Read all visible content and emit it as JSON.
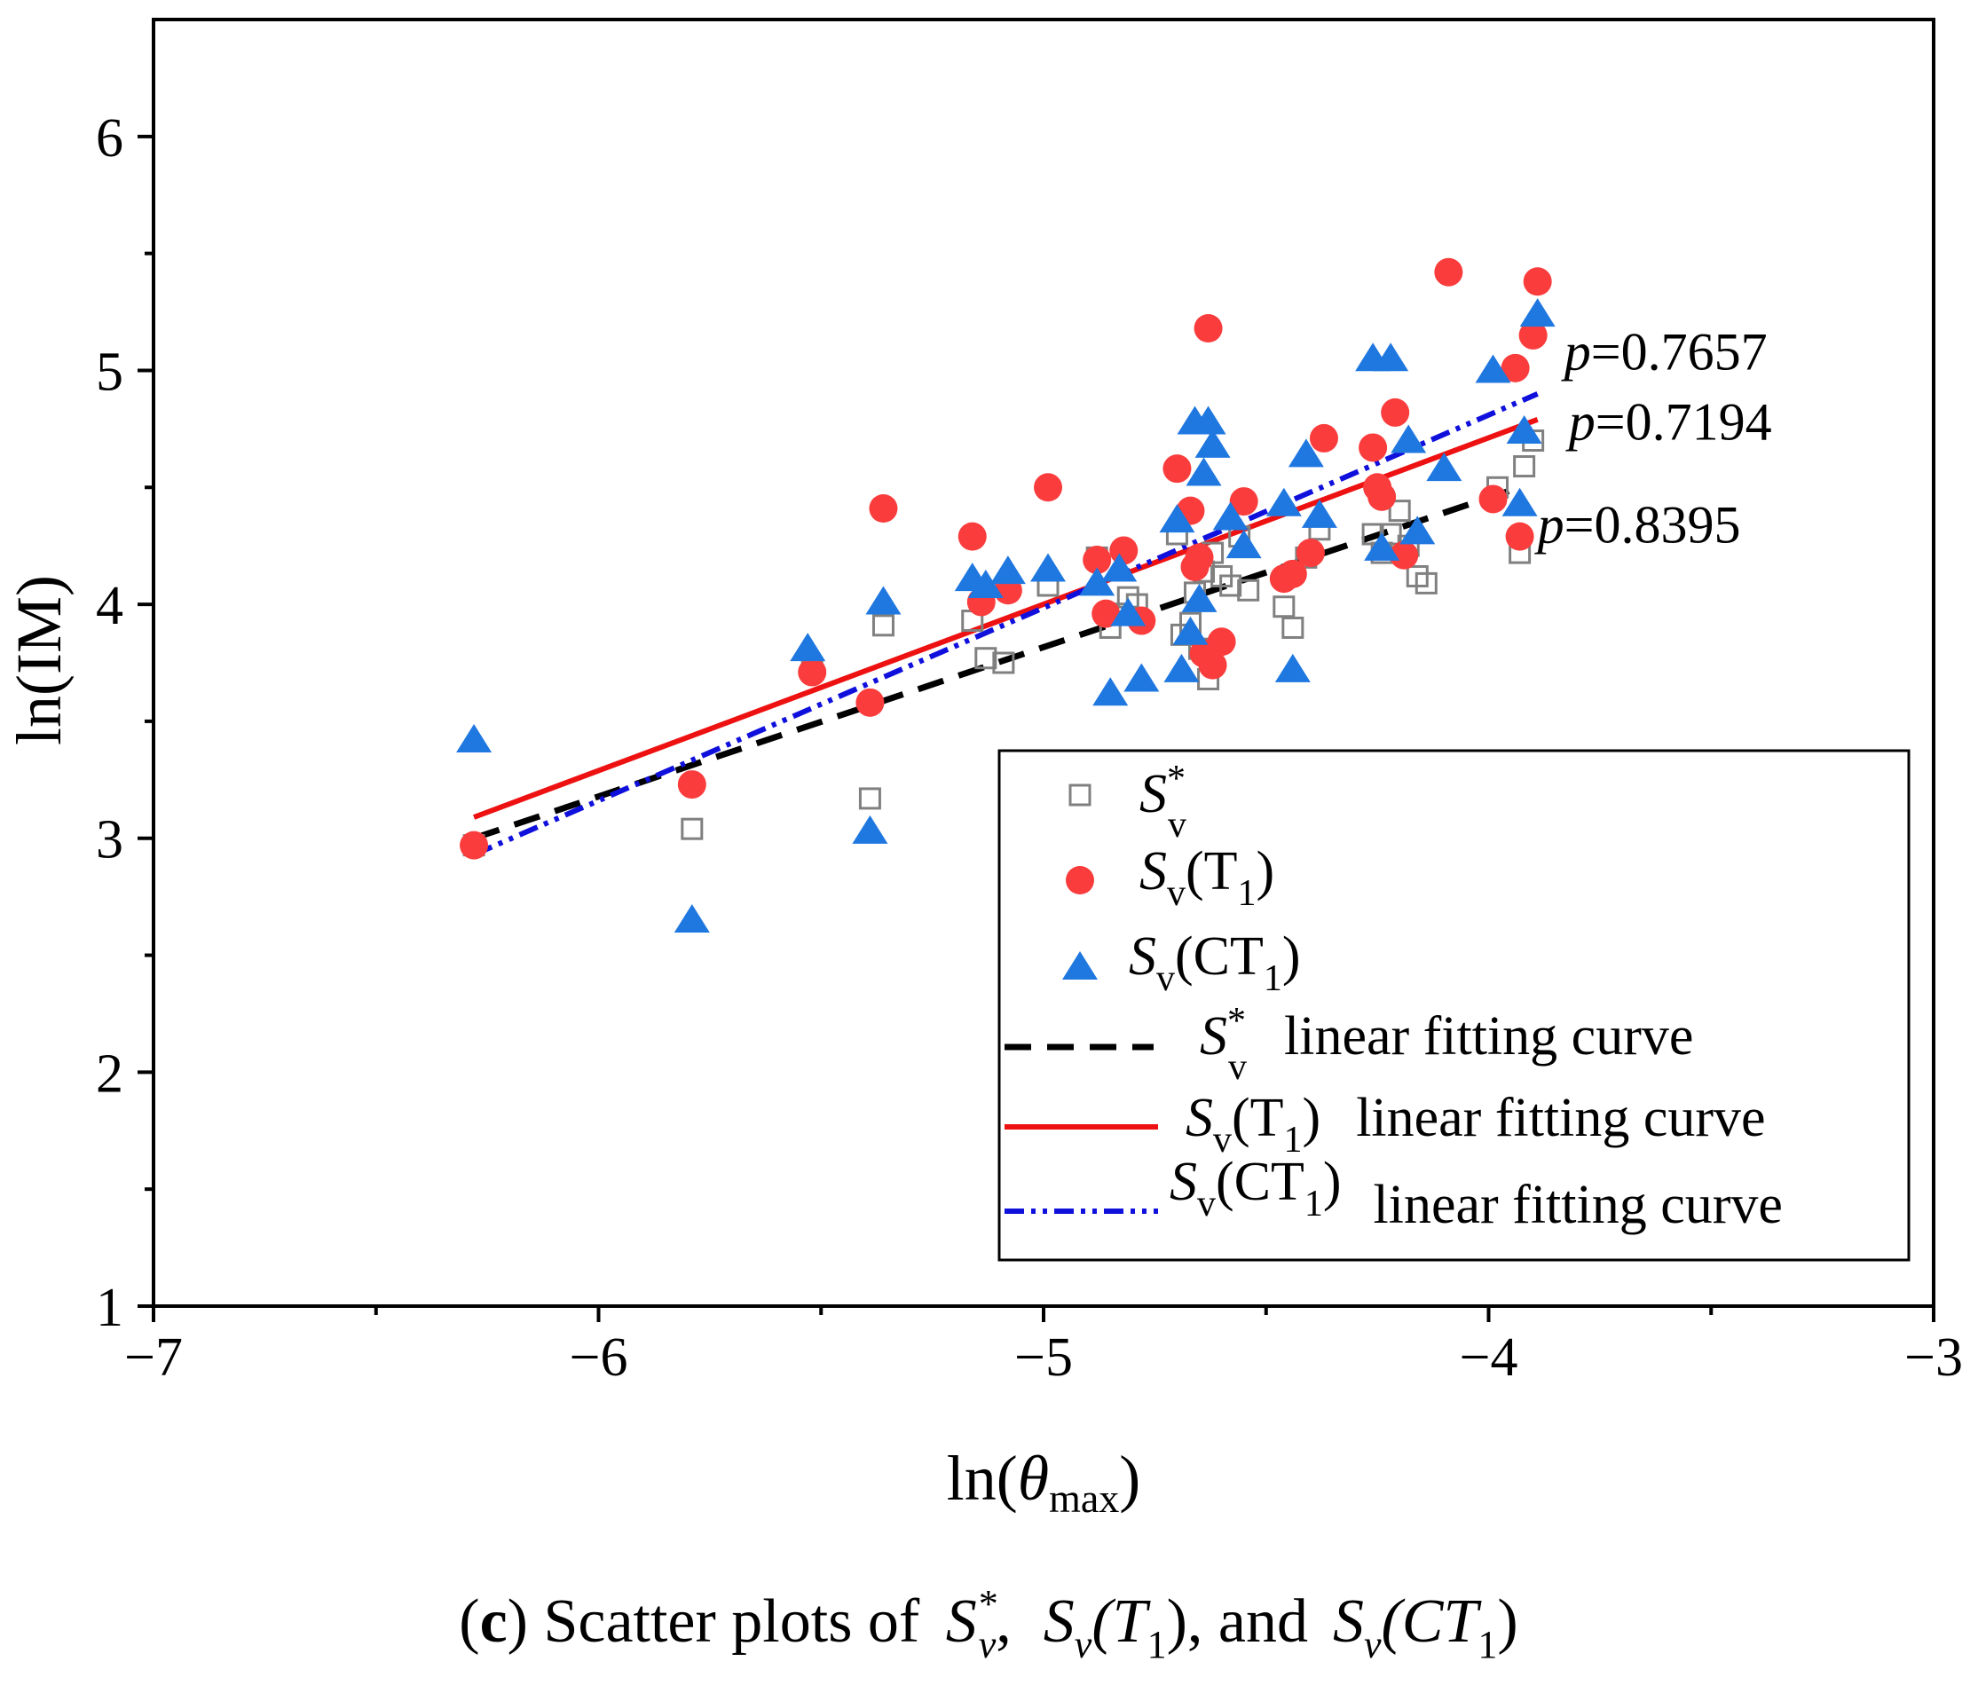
{
  "caption": {
    "letter": "c",
    "text_before": " Scatter plots of ",
    "sym1_main": "S",
    "sym1_sup": "*",
    "sym1_sub": "v",
    "sep1": ",",
    "sym2_main": "S",
    "sym2_sub": "v",
    "sym2_arg": "(T",
    "sym2_argsub": "1",
    "sym2_close": ")",
    "sep2": ", and",
    "sym3_main": "S",
    "sym3_sub": "v",
    "sym3_arg": "(CT",
    "sym3_argsub": "1",
    "sym3_close": ")"
  },
  "legend": {
    "items": [
      {
        "main": "S",
        "sup": "*",
        "sub": "v",
        "arg": "",
        "argsub": "",
        "close": "",
        "suffix": ""
      },
      {
        "main": "S",
        "sup": "",
        "sub": "v",
        "arg": "(T",
        "argsub": "1",
        "close": ")",
        "suffix": ""
      },
      {
        "main": "S",
        "sup": "",
        "sub": "v",
        "arg": "(CT",
        "argsub": "1",
        "close": ")",
        "suffix": ""
      },
      {
        "main": "S",
        "sup": "*",
        "sub": "v",
        "arg": "",
        "argsub": "",
        "close": "",
        "suffix": "linear fitting curve"
      },
      {
        "main": "S",
        "sup": "",
        "sub": "v",
        "arg": "(T",
        "argsub": "1",
        "close": ")",
        "suffix": "linear fitting curve"
      },
      {
        "main": "S",
        "sup": "",
        "sub": "v",
        "arg": "(CT",
        "argsub": "1",
        "close": ")",
        "suffix": "linear fitting curve"
      }
    ]
  },
  "colors": {
    "sv_star": "#808080",
    "sv_t1": "#fa3c3c",
    "sv_ct1": "#1f77e0",
    "fit_sv_star": "#000000",
    "fit_sv_t1": "#ee1111",
    "fit_sv_ct1": "#1010dd"
  },
  "chart_data": {
    "type": "scatter",
    "xlim": [
      -7,
      -3
    ],
    "ylim": [
      1,
      6.5
    ],
    "x_ticks": [
      -7,
      -6,
      -5,
      -4,
      -3
    ],
    "x_tick_labels": [
      "−7",
      "−6",
      "−5",
      "−4",
      "−3"
    ],
    "y_ticks": [
      1,
      2,
      3,
      4,
      5,
      6
    ],
    "y_tick_labels": [
      "1",
      "2",
      "3",
      "4",
      "5",
      "6"
    ],
    "xlabel": {
      "main": "ln(",
      "italic": "θ",
      "sub": "max",
      "close": ")"
    },
    "ylabel": "ln(IM)",
    "grid": false,
    "legend_position": "bottom-right",
    "annotations": [
      {
        "italic": "p",
        "text": "=0.7657",
        "x": -3.83,
        "y": 5.08
      },
      {
        "italic": "p",
        "text": "=0.7194",
        "x": -3.82,
        "y": 4.78
      },
      {
        "italic": "p",
        "text": "=0.8395",
        "x": -3.89,
        "y": 4.34
      }
    ],
    "series": [
      {
        "key": "sv_star",
        "marker": "square",
        "x": [
          -6.28,
          -5.79,
          -5.52,
          -5.39,
          -5.36,
          -5.16,
          -5.13,
          -5.09,
          -4.99,
          -4.88,
          -4.85,
          -4.83,
          -4.81,
          -4.79,
          -4.7,
          -4.69,
          -4.67,
          -4.66,
          -4.65,
          -4.64,
          -4.63,
          -4.62,
          -4.6,
          -4.58,
          -4.56,
          -4.54,
          -4.46,
          -4.44,
          -4.41,
          -4.38,
          -4.26,
          -4.24,
          -4.22,
          -4.2,
          -4.18,
          -4.16,
          -4.14,
          -3.98,
          -3.93,
          -3.92,
          -3.9
        ],
        "y": [
          2.97,
          3.04,
          3.72,
          3.17,
          3.91,
          3.93,
          3.77,
          3.75,
          4.08,
          4.2,
          3.9,
          3.96,
          4.03,
          4.0,
          4.3,
          3.87,
          3.92,
          4.05,
          3.81,
          4.14,
          3.68,
          4.22,
          4.12,
          4.08,
          4.29,
          4.06,
          3.99,
          3.9,
          4.2,
          4.32,
          4.3,
          4.22,
          4.3,
          4.4,
          4.25,
          4.12,
          4.09,
          4.5,
          4.22,
          4.59,
          4.7
        ]
      },
      {
        "key": "sv_t1",
        "marker": "circle",
        "x": [
          -6.28,
          -5.79,
          -5.52,
          -5.39,
          -5.36,
          -5.16,
          -5.14,
          -5.08,
          -4.99,
          -4.88,
          -4.86,
          -4.82,
          -4.78,
          -4.7,
          -4.67,
          -4.66,
          -4.65,
          -4.64,
          -4.63,
          -4.62,
          -4.6,
          -4.55,
          -4.46,
          -4.44,
          -4.4,
          -4.37,
          -4.26,
          -4.25,
          -4.24,
          -4.21,
          -4.19,
          -4.09,
          -3.99,
          -3.94,
          -3.93,
          -3.9,
          -3.89
        ],
        "y": [
          2.97,
          3.23,
          3.71,
          3.58,
          4.41,
          4.29,
          4.01,
          4.06,
          4.5,
          4.19,
          3.96,
          4.23,
          3.93,
          4.58,
          4.4,
          4.16,
          4.2,
          3.79,
          5.18,
          3.74,
          3.84,
          4.44,
          4.11,
          4.13,
          4.22,
          4.71,
          4.67,
          4.5,
          4.46,
          4.82,
          4.21,
          5.42,
          4.45,
          5.01,
          4.29,
          5.15,
          5.38
        ]
      },
      {
        "key": "sv_ct1",
        "marker": "triangle",
        "x": [
          -6.28,
          -5.79,
          -5.53,
          -5.39,
          -5.36,
          -5.16,
          -5.13,
          -5.08,
          -4.99,
          -4.88,
          -4.85,
          -4.83,
          -4.81,
          -4.78,
          -4.7,
          -4.69,
          -4.67,
          -4.66,
          -4.65,
          -4.64,
          -4.63,
          -4.62,
          -4.58,
          -4.55,
          -4.46,
          -4.44,
          -4.41,
          -4.38,
          -4.26,
          -4.24,
          -4.22,
          -4.18,
          -4.16,
          -4.1,
          -3.99,
          -3.93,
          -3.92,
          -3.89
        ],
        "y": [
          3.42,
          2.65,
          3.81,
          3.03,
          4.01,
          4.11,
          4.08,
          4.14,
          4.15,
          4.09,
          3.62,
          4.15,
          3.96,
          3.68,
          4.36,
          3.72,
          3.88,
          4.78,
          4.02,
          4.56,
          4.78,
          4.68,
          4.37,
          4.25,
          4.43,
          3.72,
          4.64,
          4.38,
          5.05,
          4.24,
          5.05,
          4.7,
          4.31,
          4.58,
          5.0,
          4.43,
          4.74,
          5.24
        ]
      }
    ],
    "fits": [
      {
        "key": "sv_star",
        "style": "dashed",
        "x": [
          -6.28,
          -3.93
        ],
        "y": [
          3.0,
          4.5
        ]
      },
      {
        "key": "sv_t1",
        "style": "solid",
        "x": [
          -6.28,
          -3.89
        ],
        "y": [
          3.09,
          4.79
        ]
      },
      {
        "key": "sv_ct1",
        "style": "dashdotdot",
        "x": [
          -6.28,
          -3.89
        ],
        "y": [
          2.93,
          4.9
        ]
      }
    ]
  }
}
